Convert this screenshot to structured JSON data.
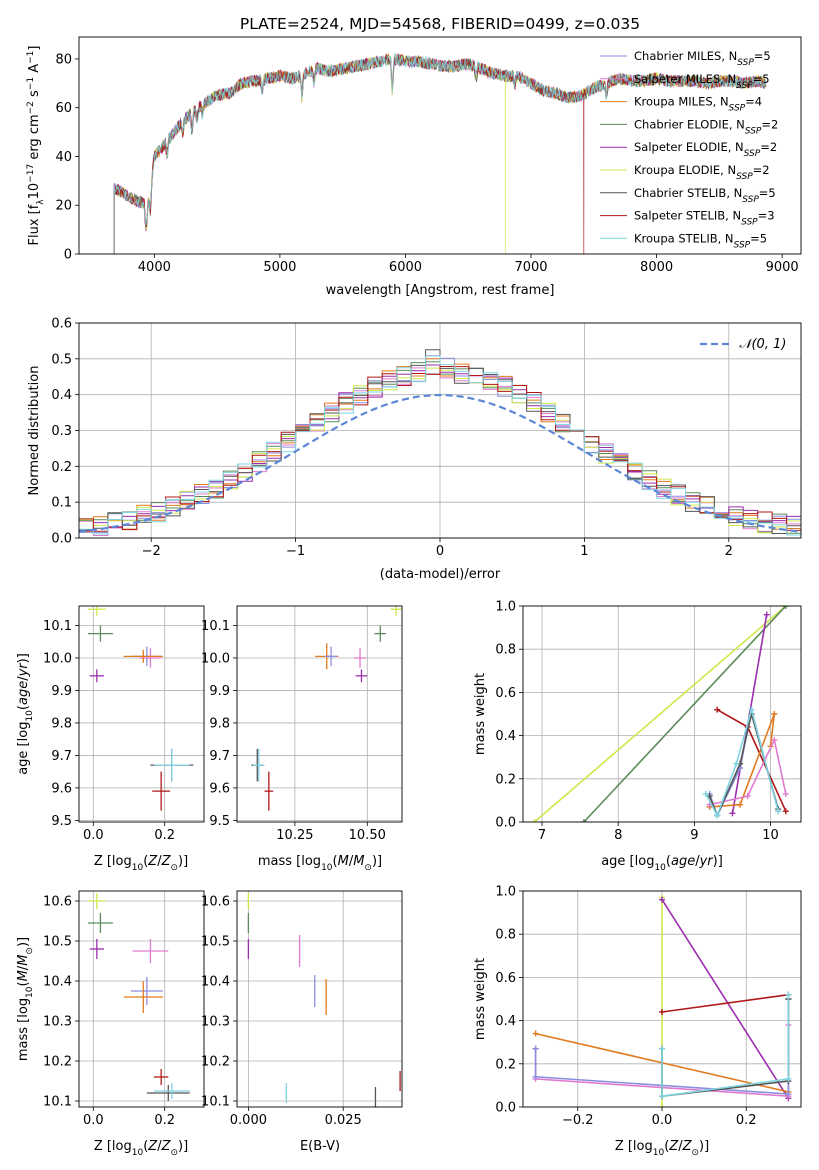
{
  "title": "PLATE=2524, MJD=54568, FIBERID=0499, z=0.035",
  "colors": {
    "Chabrier MILES": "#8c8fe0",
    "Salpeter MILES": "#e07ad0",
    "Kroupa MILES": "#e07b1f",
    "Chabrier ELODIE": "#5b8a5b",
    "Salpeter ELODIE": "#9b2fae",
    "Kroupa ELODIE": "#cfe84a",
    "Chabrier STELIB": "#555555",
    "Salpeter STELIB": "#b01818",
    "Kroupa STELIB": "#7fd4e0"
  },
  "chart_data": [
    {
      "id": "spectrum",
      "type": "line",
      "xlabel": "wavelength [Angstrom, rest frame]",
      "ylabel": "Flux [f",
      "ylabel_parts": [
        "Flux [f",
        "λ",
        "10",
        "−17",
        " erg cm",
        "−2",
        " s",
        "−1",
        " A",
        "−1",
        "]"
      ],
      "xlim": [
        3400,
        9150
      ],
      "ylim": [
        0,
        89
      ],
      "xticks": [
        4000,
        5000,
        6000,
        7000,
        8000,
        9000
      ],
      "yticks": [
        0,
        20,
        40,
        60,
        80
      ],
      "grid": false,
      "legend_position": "right",
      "legend": [
        {
          "name": "Chabrier MILES",
          "base": "Chabrier MILES, N",
          "sub": "SSP",
          "n": "=5"
        },
        {
          "name": "Salpeter MILES",
          "base": "Salpeter MILES, N",
          "sub": "SSP",
          "n": "=5"
        },
        {
          "name": "Kroupa MILES",
          "base": "Kroupa MILES, N",
          "sub": "SSP",
          "n": "=4"
        },
        {
          "name": "Chabrier ELODIE",
          "base": "Chabrier ELODIE, N",
          "sub": "SSP",
          "n": "=2"
        },
        {
          "name": "Salpeter ELODIE",
          "base": "Salpeter ELODIE, N",
          "sub": "SSP",
          "n": "=2"
        },
        {
          "name": "Kroupa ELODIE",
          "base": "Kroupa ELODIE, N",
          "sub": "SSP",
          "n": "=2"
        },
        {
          "name": "Chabrier STELIB",
          "base": "Chabrier STELIB, N",
          "sub": "SSP",
          "n": "=5"
        },
        {
          "name": "Salpeter STELIB",
          "base": "Salpeter STELIB, N",
          "sub": "SSP",
          "n": "=3"
        },
        {
          "name": "Kroupa STELIB",
          "base": "Kroupa STELIB, N",
          "sub": "SSP",
          "n": "=5"
        }
      ],
      "continuum_x": [
        3680,
        3750,
        3850,
        3950,
        4000,
        4100,
        4200,
        4300,
        4400,
        4500,
        4600,
        4700,
        4800,
        4900,
        5000,
        5100,
        5200,
        5300,
        5400,
        5500,
        5600,
        5700,
        5800,
        5900,
        6000,
        6100,
        6200,
        6300,
        6400,
        6500,
        6600,
        6700,
        6800,
        6900,
        7000,
        7100,
        7200,
        7300,
        7400,
        7500,
        7600,
        7700,
        7800,
        7900,
        8000,
        8100,
        8200,
        8300,
        8400,
        8500,
        8600,
        8700,
        8800,
        8870
      ],
      "continuum_y": [
        27,
        25,
        22,
        20,
        40,
        46,
        53,
        58,
        62,
        65,
        66,
        70,
        71,
        72,
        73,
        72,
        74,
        76,
        75,
        76,
        77,
        78,
        79,
        80,
        79,
        79,
        78,
        77,
        77,
        78,
        76,
        74,
        73,
        73,
        70,
        67,
        66,
        64,
        65,
        68,
        70,
        72,
        71,
        71,
        72,
        71,
        71,
        71,
        70,
        71,
        71,
        70,
        71,
        70
      ],
      "absorption_lines": [
        {
          "x": 3934,
          "depth": 12
        },
        {
          "x": 3969,
          "depth": 10
        },
        {
          "x": 4102,
          "depth": 6
        },
        {
          "x": 4227,
          "depth": 5
        },
        {
          "x": 4300,
          "depth": 8
        },
        {
          "x": 4340,
          "depth": 5
        },
        {
          "x": 4383,
          "depth": 4
        },
        {
          "x": 4861,
          "depth": 6
        },
        {
          "x": 5175,
          "depth": 10
        },
        {
          "x": 5270,
          "depth": 5
        },
        {
          "x": 5895,
          "depth": 14
        },
        {
          "x": 6563,
          "depth": 5
        },
        {
          "x": 6870,
          "depth": 4
        },
        {
          "x": 7600,
          "depth": 5
        }
      ],
      "dropouts": [
        {
          "series": "Kroupa ELODIE",
          "x": 6795
        },
        {
          "series": "Salpeter STELIB",
          "x": 7420
        }
      ]
    },
    {
      "id": "residuals",
      "type": "histogram",
      "xlabel": "(data-model)/error",
      "ylabel": "Normed distribution",
      "xlim": [
        -2.5,
        2.5
      ],
      "ylim": [
        0,
        0.6
      ],
      "xticks": [
        -2,
        -1,
        0,
        1,
        2
      ],
      "yticks": [
        0.0,
        0.1,
        0.2,
        0.3,
        0.4,
        0.5,
        0.6
      ],
      "grid": true,
      "bin_width": 0.1,
      "legend": "𝒩(0, 1)",
      "legend_position": "top-right",
      "reference_curve": "normal(0,1)",
      "reference_color": "#5b87d6"
    },
    {
      "id": "age_vs_Z",
      "type": "errorbar",
      "xlabel": "Z [log10(Z/Z⊙)]",
      "ylabel": "age  [log10(age/yr)]",
      "xlim": [
        -0.04,
        0.31
      ],
      "ylim": [
        9.495,
        10.16
      ],
      "xticks": [
        0.0,
        0.2
      ],
      "yticks": [
        9.5,
        9.6,
        9.7,
        9.8,
        9.9,
        10.0,
        10.1
      ],
      "grid": true,
      "points": [
        {
          "series": "Kroupa ELODIE",
          "x": 0.01,
          "y": 10.15,
          "xerr": 0.025,
          "yerr": 0.02
        },
        {
          "series": "Chabrier ELODIE",
          "x": 0.02,
          "y": 10.075,
          "xerr": 0.035,
          "yerr": 0.025
        },
        {
          "series": "Salpeter ELODIE",
          "x": 0.01,
          "y": 9.945,
          "xerr": 0.02,
          "yerr": 0.02
        },
        {
          "series": "Chabrier MILES",
          "x": 0.15,
          "y": 10.005,
          "xerr": 0.04,
          "yerr": 0.03
        },
        {
          "series": "Salpeter MILES",
          "x": 0.16,
          "y": 10.0,
          "xerr": 0.03,
          "yerr": 0.03
        },
        {
          "series": "Kroupa MILES",
          "x": 0.14,
          "y": 10.005,
          "xerr": 0.055,
          "yerr": 0.02
        },
        {
          "series": "Chabrier STELIB",
          "x": 0.22,
          "y": 9.67,
          "xerr": 0.06,
          "yerr": 0.05
        },
        {
          "series": "Kroupa STELIB",
          "x": 0.22,
          "y": 9.67,
          "xerr": 0.05,
          "yerr": 0.05
        },
        {
          "series": "Salpeter STELIB",
          "x": 0.19,
          "y": 9.59,
          "xerr": 0.025,
          "yerr": 0.06
        }
      ]
    },
    {
      "id": "age_vs_mass",
      "type": "errorbar",
      "xlabel": "mass [log10(M/M⊙)]",
      "ylabel": "",
      "xlim": [
        10.05,
        10.62
      ],
      "ylim": [
        9.495,
        10.16
      ],
      "xticks": [
        10.25,
        10.5
      ],
      "yticks": [
        9.5,
        9.6,
        9.7,
        9.8,
        9.9,
        10.0,
        10.1
      ],
      "grid": true,
      "points": [
        {
          "series": "Kroupa ELODIE",
          "x": 10.6,
          "y": 10.15,
          "xerr": 0.02,
          "yerr": 0.02
        },
        {
          "series": "Chabrier ELODIE",
          "x": 10.545,
          "y": 10.075,
          "xerr": 0.02,
          "yerr": 0.025
        },
        {
          "series": "Salpeter ELODIE",
          "x": 10.48,
          "y": 9.945,
          "xerr": 0.02,
          "yerr": 0.02
        },
        {
          "series": "Kroupa MILES",
          "x": 10.36,
          "y": 10.005,
          "xerr": 0.04,
          "yerr": 0.04
        },
        {
          "series": "Chabrier MILES",
          "x": 10.375,
          "y": 10.005,
          "xerr": 0.02,
          "yerr": 0.03
        },
        {
          "series": "Salpeter MILES",
          "x": 10.475,
          "y": 10.0,
          "xerr": 0.02,
          "yerr": 0.03
        },
        {
          "series": "Chabrier STELIB",
          "x": 10.12,
          "y": 9.67,
          "xerr": 0.02,
          "yerr": 0.05
        },
        {
          "series": "Kroupa STELIB",
          "x": 10.125,
          "y": 9.67,
          "xerr": 0.02,
          "yerr": 0.05
        },
        {
          "series": "Salpeter STELIB",
          "x": 10.16,
          "y": 9.59,
          "xerr": 0.015,
          "yerr": 0.06
        }
      ]
    },
    {
      "id": "weight_vs_age",
      "type": "line",
      "xlabel": "age  [log10(age/yr)]",
      "ylabel": "mass weight",
      "xlim": [
        6.75,
        10.4
      ],
      "ylim": [
        0,
        1.0
      ],
      "xticks": [
        7,
        8,
        9,
        10
      ],
      "yticks": [
        0.0,
        0.2,
        0.4,
        0.6,
        0.8,
        1.0
      ],
      "grid": true,
      "series": [
        {
          "name": "Kroupa ELODIE",
          "x": [
            6.9,
            10.2
          ],
          "y": [
            0.0,
            1.0
          ]
        },
        {
          "name": "Chabrier ELODIE",
          "x": [
            7.55,
            10.2
          ],
          "y": [
            0.0,
            1.0
          ]
        },
        {
          "name": "Salpeter ELODIE",
          "x": [
            9.5,
            9.95
          ],
          "y": [
            0.04,
            0.96
          ]
        },
        {
          "name": "Salpeter STELIB",
          "x": [
            9.3,
            9.7,
            10.2
          ],
          "y": [
            0.52,
            0.44,
            0.05
          ]
        },
        {
          "name": "Kroupa MILES",
          "x": [
            9.2,
            9.6,
            10.05,
            10.0
          ],
          "y": [
            0.07,
            0.08,
            0.5,
            0.35
          ]
        },
        {
          "name": "Chabrier MILES",
          "x": [
            9.2,
            9.3,
            9.6,
            9.75,
            10.1
          ],
          "y": [
            0.13,
            0.03,
            0.25,
            0.52,
            0.05
          ]
        },
        {
          "name": "Salpeter MILES",
          "x": [
            9.2,
            9.7,
            10.05,
            10.2
          ],
          "y": [
            0.08,
            0.12,
            0.38,
            0.13
          ]
        },
        {
          "name": "Chabrier STELIB",
          "x": [
            9.2,
            9.3,
            9.6,
            9.75,
            10.1
          ],
          "y": [
            0.12,
            0.03,
            0.27,
            0.5,
            0.06
          ]
        },
        {
          "name": "Kroupa STELIB",
          "x": [
            9.15,
            9.3,
            9.55,
            9.75,
            10.1
          ],
          "y": [
            0.13,
            0.03,
            0.27,
            0.52,
            0.05
          ]
        }
      ]
    },
    {
      "id": "mass_vs_Z",
      "type": "errorbar",
      "xlabel": "Z [log10(Z/Z⊙)]",
      "ylabel": "mass [log10(M/M⊙)]",
      "xlim": [
        -0.04,
        0.31
      ],
      "ylim": [
        10.085,
        10.625
      ],
      "xticks": [
        0.0,
        0.2
      ],
      "yticks": [
        10.1,
        10.2,
        10.3,
        10.4,
        10.5,
        10.6
      ],
      "grid": true,
      "points": [
        {
          "series": "Kroupa ELODIE",
          "x": 0.01,
          "y": 10.6,
          "xerr": 0.025,
          "yerr": 0.02
        },
        {
          "series": "Chabrier ELODIE",
          "x": 0.02,
          "y": 10.545,
          "xerr": 0.035,
          "yerr": 0.025
        },
        {
          "series": "Salpeter ELODIE",
          "x": 0.01,
          "y": 10.48,
          "xerr": 0.02,
          "yerr": 0.025
        },
        {
          "series": "Salpeter MILES",
          "x": 0.16,
          "y": 10.475,
          "xerr": 0.05,
          "yerr": 0.03
        },
        {
          "series": "Chabrier MILES",
          "x": 0.15,
          "y": 10.375,
          "xerr": 0.045,
          "yerr": 0.035
        },
        {
          "series": "Kroupa MILES",
          "x": 0.14,
          "y": 10.36,
          "xerr": 0.055,
          "yerr": 0.04
        },
        {
          "series": "Salpeter STELIB",
          "x": 0.19,
          "y": 10.16,
          "xerr": 0.02,
          "yerr": 0.02
        },
        {
          "series": "Chabrier STELIB",
          "x": 0.21,
          "y": 10.12,
          "xerr": 0.06,
          "yerr": 0.02
        },
        {
          "series": "Kroupa STELIB",
          "x": 0.22,
          "y": 10.125,
          "xerr": 0.05,
          "yerr": 0.02
        }
      ]
    },
    {
      "id": "mass_vs_EBV",
      "type": "errorbar",
      "xlabel": "E(B-V)",
      "ylabel": "",
      "xlim": [
        -0.003,
        0.0405
      ],
      "ylim": [
        10.085,
        10.625
      ],
      "xticks": [
        0.0,
        0.025
      ],
      "yticks": [
        10.1,
        10.2,
        10.3,
        10.4,
        10.5,
        10.6
      ],
      "grid": true,
      "points": [
        {
          "series": "Kroupa ELODIE",
          "x": 0.0,
          "y": 10.6,
          "xerr": 0,
          "yerr": 0.02
        },
        {
          "series": "Chabrier ELODIE",
          "x": 0.0,
          "y": 10.545,
          "xerr": 0,
          "yerr": 0.025
        },
        {
          "series": "Salpeter ELODIE",
          "x": 0.0,
          "y": 10.48,
          "xerr": 0,
          "yerr": 0.025
        },
        {
          "series": "Salpeter MILES",
          "x": 0.0135,
          "y": 10.475,
          "xerr": 0,
          "yerr": 0.04
        },
        {
          "series": "Chabrier MILES",
          "x": 0.0175,
          "y": 10.375,
          "xerr": 0,
          "yerr": 0.04
        },
        {
          "series": "Kroupa MILES",
          "x": 0.0205,
          "y": 10.36,
          "xerr": 0,
          "yerr": 0.045
        },
        {
          "series": "Kroupa STELIB",
          "x": 0.01,
          "y": 10.12,
          "xerr": 0,
          "yerr": 0.025
        },
        {
          "series": "Chabrier STELIB",
          "x": 0.0335,
          "y": 10.11,
          "xerr": 0,
          "yerr": 0.025
        },
        {
          "series": "Salpeter STELIB",
          "x": 0.04,
          "y": 10.15,
          "xerr": 0,
          "yerr": 0.025
        }
      ]
    },
    {
      "id": "weight_vs_Z",
      "type": "line",
      "xlabel": "Z [log10(Z/Z⊙)]",
      "ylabel": "mass weight",
      "xlim": [
        -0.33,
        0.33
      ],
      "ylim": [
        0,
        1.0
      ],
      "xticks": [
        -0.2,
        0.0,
        0.2
      ],
      "yticks": [
        0.0,
        0.2,
        0.4,
        0.6,
        0.8,
        1.0
      ],
      "grid": true,
      "series": [
        {
          "name": "Kroupa ELODIE",
          "x": [
            0.0,
            0.0
          ],
          "y": [
            0.0,
            0.97
          ]
        },
        {
          "name": "Salpeter ELODIE",
          "x": [
            0.0,
            0.3
          ],
          "y": [
            0.96,
            0.04
          ]
        },
        {
          "name": "Salpeter STELIB",
          "x": [
            0.0,
            0.3
          ],
          "y": [
            0.44,
            0.52
          ]
        },
        {
          "name": "Kroupa MILES",
          "x": [
            -0.3,
            0.3
          ],
          "y": [
            0.34,
            0.07
          ]
        },
        {
          "name": "Salpeter MILES",
          "x": [
            -0.3,
            -0.3,
            0.3,
            0.3
          ],
          "y": [
            0.27,
            0.13,
            0.05,
            0.38
          ]
        },
        {
          "name": "Chabrier MILES",
          "x": [
            -0.3,
            -0.3,
            0.3,
            0.3
          ],
          "y": [
            0.27,
            0.14,
            0.06,
            0.5
          ]
        },
        {
          "name": "Chabrier STELIB",
          "x": [
            0.0,
            0.0,
            0.3,
            0.3
          ],
          "y": [
            0.27,
            0.05,
            0.12,
            0.5
          ]
        },
        {
          "name": "Kroupa STELIB",
          "x": [
            0.0,
            0.0,
            0.3,
            0.3
          ],
          "y": [
            0.27,
            0.05,
            0.13,
            0.52
          ]
        }
      ]
    }
  ]
}
